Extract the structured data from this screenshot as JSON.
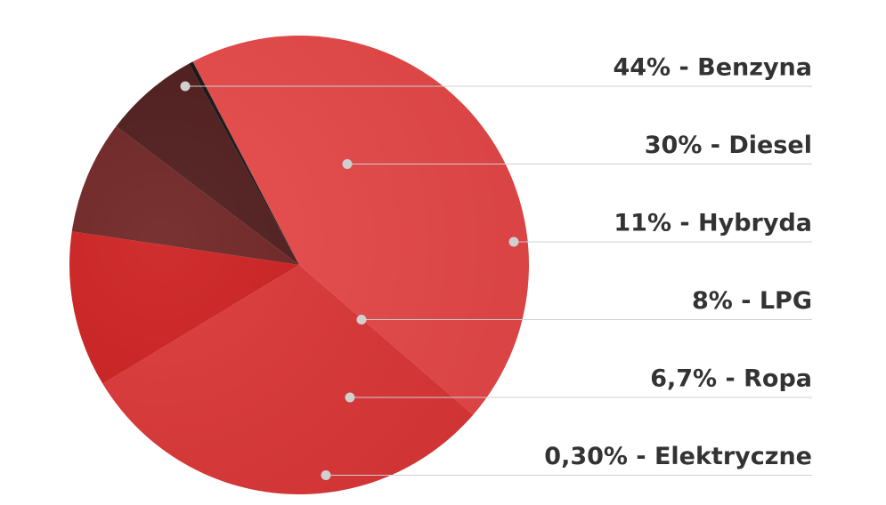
{
  "chart_data": {
    "type": "pie",
    "values": [
      44,
      30,
      11,
      8,
      6.7,
      0.3
    ],
    "value_labels": [
      "44% - Benzyna",
      "30% - Diesel",
      "11% - Hybryda",
      "8% - LPG",
      "6,7% - Ropa",
      "0,30% - Elektryczne"
    ],
    "colors": [
      "#e64646",
      "#db3434",
      "#cc1d1d",
      "#6d2121",
      "#4d1919",
      "#111111"
    ]
  }
}
